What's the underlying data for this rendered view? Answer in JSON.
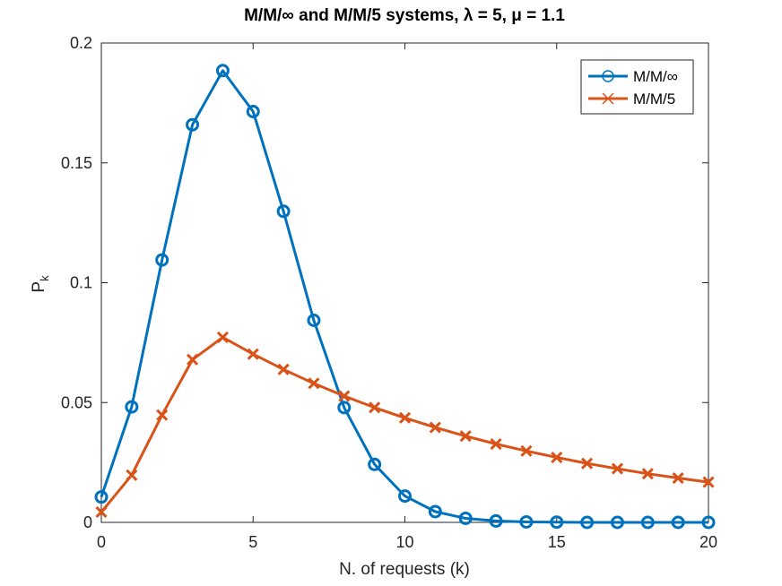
{
  "chart_data": {
    "type": "line",
    "title": "M/M/∞ and M/M/5 systems, λ = 5, μ = 1.1",
    "xlabel": "N. of requests (k)",
    "ylabel": "P",
    "ylabel_subscript": "k",
    "xlim": [
      0,
      20
    ],
    "ylim": [
      0,
      0.2
    ],
    "xticks": [
      0,
      5,
      10,
      15,
      20
    ],
    "yticks": [
      0,
      0.05,
      0.1,
      0.15,
      0.2
    ],
    "xtick_labels": [
      "0",
      "5",
      "10",
      "15",
      "20"
    ],
    "ytick_labels": [
      "0",
      "0.05",
      "0.1",
      "0.15",
      "0.2"
    ],
    "legend_position": "top-right",
    "x": [
      0,
      1,
      2,
      3,
      4,
      5,
      6,
      7,
      8,
      9,
      10,
      11,
      12,
      13,
      14,
      15,
      16,
      17,
      18,
      19,
      20
    ],
    "series": [
      {
        "name": "M/M/∞",
        "color": "#0072bd",
        "marker": "circle",
        "values": [
          0.0106,
          0.0482,
          0.1095,
          0.1659,
          0.1885,
          0.1714,
          0.1298,
          0.0843,
          0.0479,
          0.0242,
          0.011,
          0.0045,
          0.0017,
          0.0006,
          0.0002,
          0.0001,
          0.0,
          0.0,
          0.0,
          0.0,
          0.0
        ]
      },
      {
        "name": "M/M/5",
        "color": "#d95319",
        "marker": "x",
        "values": [
          0.0043,
          0.0197,
          0.0448,
          0.0679,
          0.0772,
          0.0702,
          0.0638,
          0.058,
          0.0527,
          0.0479,
          0.0436,
          0.0396,
          0.036,
          0.0327,
          0.0298,
          0.0271,
          0.0246,
          0.0224,
          0.0203,
          0.0185,
          0.0168
        ]
      }
    ]
  }
}
